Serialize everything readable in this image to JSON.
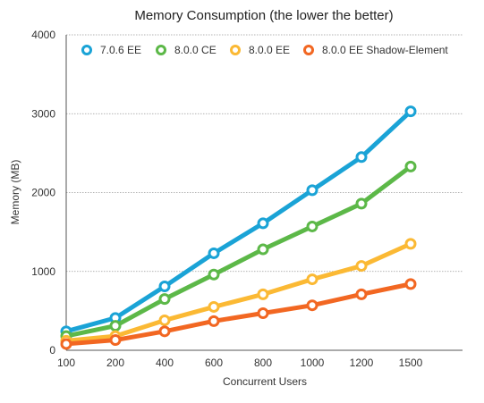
{
  "chart_data": {
    "type": "line",
    "title": "Memory Consumption (the lower the better)",
    "xlabel": "Concurrent Users",
    "ylabel": "Memory (MB)",
    "categories": [
      "100",
      "200",
      "400",
      "600",
      "800",
      "1000",
      "1200",
      "1500"
    ],
    "ylim": [
      0,
      4000
    ],
    "yticks": [
      0,
      1000,
      2000,
      3000,
      4000
    ],
    "grid": true,
    "legend_position": "top",
    "series": [
      {
        "name": "7.0.6 EE",
        "color": "#1aa3d6",
        "values": [
          240,
          410,
          810,
          1230,
          1610,
          2030,
          2450,
          3030
        ]
      },
      {
        "name": "8.0.0 CE",
        "color": "#5cb848",
        "values": [
          180,
          310,
          650,
          960,
          1280,
          1570,
          1860,
          2330
        ]
      },
      {
        "name": "8.0.0 EE",
        "color": "#fbb934",
        "values": [
          120,
          180,
          380,
          550,
          710,
          900,
          1070,
          1350
        ]
      },
      {
        "name": "8.0.0 EE Shadow-Element",
        "color": "#f26722",
        "values": [
          80,
          130,
          240,
          370,
          470,
          570,
          710,
          840
        ]
      }
    ]
  }
}
